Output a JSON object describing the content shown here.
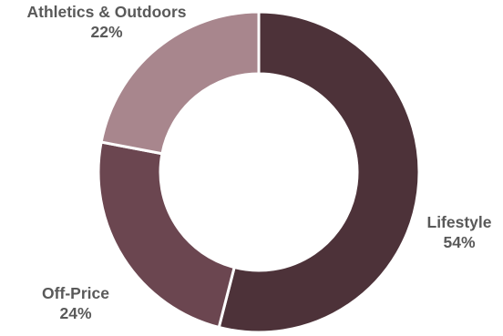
{
  "chart_data": {
    "type": "pie",
    "donut": true,
    "title": "",
    "slices": [
      {
        "name": "Lifestyle",
        "value": 54,
        "percent_label": "54%",
        "color": "#4d3239"
      },
      {
        "name": "Off-Price",
        "value": 24,
        "percent_label": "24%",
        "color": "#6b4650"
      },
      {
        "name": "Athletics & Outdoors",
        "value": 22,
        "percent_label": "22%",
        "color": "#a8868d"
      }
    ],
    "legend": "none",
    "start_angle": "12 o'clock",
    "direction": "clockwise",
    "separator_color": "#ffffff"
  }
}
